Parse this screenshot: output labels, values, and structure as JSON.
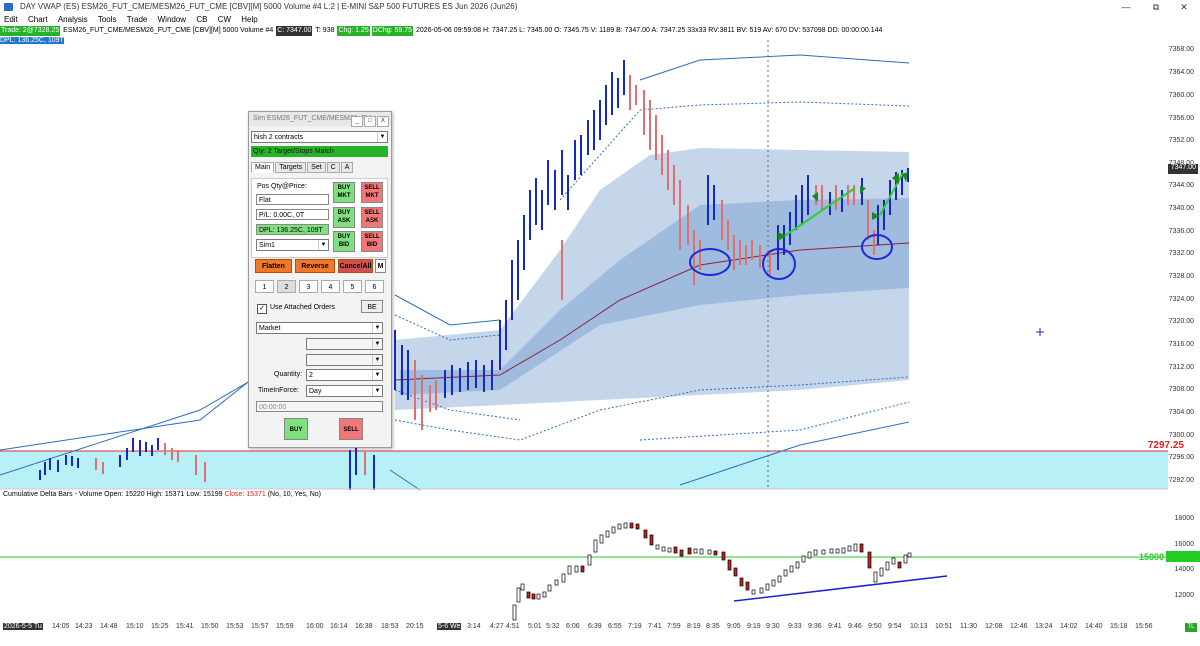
{
  "window": {
    "title": "DAY VWAP (ES) ESM26_FUT_CME/MESM26_FUT_CME [CBV][M]  5000 Volume #4 L:2 | E-MINI S&P 500 FUTURES ES Jun 2026 (Jun26)",
    "minimize": "—",
    "restore": "⧉",
    "close": "✕"
  },
  "menu": [
    "Edit",
    "Chart",
    "Analysis",
    "Tools",
    "Trade",
    "Window",
    "CB",
    "CW",
    "Help"
  ],
  "infobar": {
    "trade": "Trade: 2@7328.25",
    "symbol": "ESM26_FUT_CME/MESM26_FUT_CME [CBV][M]  5000 Volume #4",
    "close_tag": "C: 7347.00",
    "t": "T: 938",
    "chg": "Chg: 1.25",
    "dchg": "DChg: 59.75",
    "rest": "2026-05-06 09:59:08 H: 7347.25 L: 7345.00 O: 7345.75 V: 1189 B: 7347.00 A: 7347.25 33x33 RV:3811 BV: 519 AV: 670 DV: 537098 DD: 00:00:00.144"
  },
  "dpl_top": "DPL: 136.25C, 109T",
  "price_axis": [
    "7368.00",
    "7364.00",
    "7360.00",
    "7356.00",
    "7352.00",
    "7348.00",
    "7344.00",
    "7340.00",
    "7336.00",
    "7332.00",
    "7328.00",
    "7324.00",
    "7320.00",
    "7316.00",
    "7312.00",
    "7308.00",
    "7304.00",
    "7300.00",
    "7296.00",
    "7292.00"
  ],
  "current_price": "7347.00",
  "level_price": "7297.25",
  "delta_axis": [
    "18000",
    "16000",
    "14000",
    "12000"
  ],
  "delta_level": "15000",
  "delta_study": {
    "name": "Cumulative Delta Bars - Volume",
    "open": "Open: 15220",
    "high": "High: 15371",
    "low": "Low: 15199",
    "close": "Close: 15371",
    "params": "(No, 10, Yes, No)"
  },
  "time_axis": [
    {
      "t": "2026-5-5 Tu",
      "dark": true
    },
    {
      "t": "14:05"
    },
    {
      "t": "14:23"
    },
    {
      "t": "14:48"
    },
    {
      "t": "15:10"
    },
    {
      "t": "15:25"
    },
    {
      "t": "15:41"
    },
    {
      "t": "15:50"
    },
    {
      "t": "15:53"
    },
    {
      "t": "15:57"
    },
    {
      "t": "15:59"
    },
    {
      "t": "16:00"
    },
    {
      "t": "16:14"
    },
    {
      "t": "16:38"
    },
    {
      "t": "18:53"
    },
    {
      "t": "20:15"
    },
    {
      "t": "5-6 We",
      "dark": true
    },
    {
      "t": "3:14"
    },
    {
      "t": "4:27"
    },
    {
      "t": "4:51"
    },
    {
      "t": "5:01"
    },
    {
      "t": "5:32"
    },
    {
      "t": "6:06"
    },
    {
      "t": "6:39"
    },
    {
      "t": "6:55"
    },
    {
      "t": "7:19"
    },
    {
      "t": "7:41"
    },
    {
      "t": "7:59"
    },
    {
      "t": "8:19"
    },
    {
      "t": "8:35"
    },
    {
      "t": "9:05"
    },
    {
      "t": "9:19"
    },
    {
      "t": "9:30"
    },
    {
      "t": "9:33"
    },
    {
      "t": "9:36"
    },
    {
      "t": "9:41"
    },
    {
      "t": "9:46"
    },
    {
      "t": "9:50"
    },
    {
      "t": "9:54"
    },
    {
      "t": "10:13"
    },
    {
      "t": "10:51"
    },
    {
      "t": "11:30"
    },
    {
      "t": "12:08"
    },
    {
      "t": "12:46"
    },
    {
      "t": "13:24"
    },
    {
      "t": "14:02"
    },
    {
      "t": "14:40"
    },
    {
      "t": "15:18"
    },
    {
      "t": "15:56"
    }
  ],
  "corner_badge": "TL",
  "sim": {
    "title": "Sim ESM26_FUT_CME/MESM26_FU...",
    "title_btns": [
      "_",
      "□",
      "X"
    ],
    "preset": "hish 2 contracts",
    "status": "Qty: 2 Target/Stops Match",
    "tabs": [
      "Main",
      "Targets",
      "Set",
      "C",
      "A"
    ],
    "pos_label": "Pos Qty@Price:",
    "pos_value": "Flat",
    "pl_value": "P/L: 0.00C, 0T",
    "dpl_value": "DPL: 136.25C, 109T",
    "account": "Sim1",
    "buy_mkt": [
      "BUY",
      "MKT"
    ],
    "sell_mkt": [
      "SELL",
      "MKT"
    ],
    "buy_ask": [
      "BUY",
      "ASK"
    ],
    "sell_ask": [
      "SELL",
      "ASK"
    ],
    "buy_bid": [
      "BUY",
      "BID"
    ],
    "sell_bid": [
      "SELL",
      "BID"
    ],
    "flatten": "Flatten",
    "reverse": "Reverse",
    "cancel_all": "CancelAll",
    "m": "M",
    "qty_buttons": [
      "1",
      "2",
      "3",
      "4",
      "5",
      "6"
    ],
    "use_attached": "Use Attached Orders",
    "be": "BE",
    "order_type": "Market",
    "quantity_label": "Quantity:",
    "quantity_value": "2",
    "tif_label": "TimeInForce:",
    "tif_value": "Day",
    "time_placeholder": "00:00:00",
    "buy": "BUY",
    "sell": "SELL"
  },
  "colors": {
    "buy": "#7ee07e",
    "sell": "#f07878",
    "bar_up": "#1428c8",
    "bar_down": "#e07070",
    "band_light": "#c5d6ea",
    "band_mid": "#8fb0d8",
    "cyan_zone": "#b8f0f8",
    "level_green": "#22cc22",
    "vwap": "#8a2040"
  }
}
